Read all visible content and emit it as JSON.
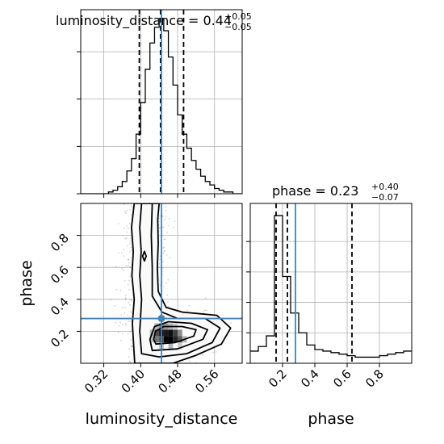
{
  "chart_data": {
    "type": "corner",
    "parameters": [
      "luminosity_distance",
      "phase"
    ],
    "truth": {
      "luminosity_distance": 0.445,
      "phase": 0.28
    },
    "titles": {
      "luminosity_distance": {
        "prefix": "luminosity_distance = 0.44",
        "sup": "+0.05",
        "sub": "−0.05"
      },
      "phase": {
        "prefix": "phase = 0.23",
        "sup": "+0.40",
        "sub": "−0.07"
      }
    },
    "xlabels": [
      "luminosity_distance",
      "phase"
    ],
    "ylabel": "phase",
    "hist_luminosity_distance": {
      "xlim": [
        0.27,
        0.62
      ],
      "quantiles": [
        0.397,
        0.443,
        0.493
      ],
      "edges": [
        0.27,
        0.28,
        0.29,
        0.3,
        0.31,
        0.32,
        0.33,
        0.34,
        0.35,
        0.36,
        0.37,
        0.38,
        0.39,
        0.4,
        0.41,
        0.42,
        0.43,
        0.44,
        0.45,
        0.46,
        0.47,
        0.48,
        0.49,
        0.5,
        0.51,
        0.52,
        0.53,
        0.54,
        0.55,
        0.56,
        0.57,
        0.58,
        0.59,
        0.6,
        0.61,
        0.62
      ],
      "counts": [
        0.0,
        0.0,
        0.0,
        0.0,
        0.0,
        0.0,
        0.01,
        0.02,
        0.04,
        0.07,
        0.13,
        0.2,
        0.34,
        0.52,
        0.71,
        0.86,
        0.95,
        1.0,
        0.93,
        0.78,
        0.62,
        0.45,
        0.34,
        0.26,
        0.19,
        0.14,
        0.1,
        0.07,
        0.05,
        0.03,
        0.02,
        0.01,
        0.01,
        0.0,
        0.0
      ],
      "xticks": [
        0.32,
        0.4,
        0.48,
        0.56
      ],
      "yticks": [
        0.0,
        0.27,
        0.54,
        0.81
      ],
      "ymax": 1.05
    },
    "hist_phase": {
      "xlim": [
        0.0,
        1.0
      ],
      "quantiles": [
        0.16,
        0.23,
        0.63
      ],
      "edges": [
        0.0,
        0.05,
        0.1,
        0.15,
        0.2,
        0.25,
        0.3,
        0.35,
        0.4,
        0.45,
        0.5,
        0.55,
        0.6,
        0.65,
        0.7,
        0.75,
        0.8,
        0.85,
        0.9,
        0.95,
        1.0
      ],
      "counts": [
        0.08,
        0.11,
        0.18,
        0.97,
        0.57,
        0.33,
        0.2,
        0.12,
        0.09,
        0.08,
        0.07,
        0.06,
        0.05,
        0.04,
        0.04,
        0.04,
        0.05,
        0.06,
        0.07,
        0.08
      ],
      "xticks": [
        0.2,
        0.4,
        0.6,
        0.8
      ],
      "yticks": [
        0.0,
        0.2,
        0.4,
        0.6,
        0.8
      ],
      "ymax": 1.05
    },
    "scatter_2d": {
      "xlim": [
        0.27,
        0.62
      ],
      "ylim": [
        0.0,
        1.0
      ],
      "xticks": [
        0.32,
        0.4,
        0.48,
        0.56
      ],
      "yticks": [
        0.2,
        0.4,
        0.6,
        0.8
      ],
      "xticklabels": [
        "0.32",
        "0.40",
        "0.48",
        "0.56"
      ],
      "yticklabels": [
        "0.2",
        "0.4",
        "0.6",
        "0.8"
      ],
      "contours": [
        [
          [
            0.386,
            1.0
          ],
          [
            0.38,
            0.85
          ],
          [
            0.384,
            0.7
          ],
          [
            0.381,
            0.55
          ],
          [
            0.386,
            0.4
          ],
          [
            0.382,
            0.25
          ],
          [
            0.385,
            0.1
          ],
          [
            0.387,
            0.0
          ],
          [
            0.47,
            0.0
          ],
          [
            0.52,
            0.05
          ],
          [
            0.575,
            0.12
          ],
          [
            0.595,
            0.22
          ],
          [
            0.565,
            0.3
          ],
          [
            0.49,
            0.32
          ],
          [
            0.455,
            0.35
          ],
          [
            0.438,
            0.45
          ],
          [
            0.436,
            0.6
          ],
          [
            0.438,
            0.75
          ],
          [
            0.437,
            0.9
          ],
          [
            0.44,
            1.0
          ]
        ],
        [
          [
            0.402,
            1.0
          ],
          [
            0.398,
            0.85
          ],
          [
            0.401,
            0.7
          ],
          [
            0.398,
            0.55
          ],
          [
            0.402,
            0.4
          ],
          [
            0.398,
            0.2
          ],
          [
            0.402,
            0.06
          ],
          [
            0.44,
            0.04
          ],
          [
            0.5,
            0.06
          ],
          [
            0.555,
            0.13
          ],
          [
            0.572,
            0.22
          ],
          [
            0.54,
            0.28
          ],
          [
            0.48,
            0.28
          ],
          [
            0.446,
            0.32
          ],
          [
            0.425,
            0.42
          ],
          [
            0.425,
            0.6
          ],
          [
            0.423,
            0.8
          ],
          [
            0.425,
            1.0
          ]
        ],
        [
          [
            0.425,
            0.08
          ],
          [
            0.48,
            0.09
          ],
          [
            0.535,
            0.15
          ],
          [
            0.545,
            0.21
          ],
          [
            0.51,
            0.25
          ],
          [
            0.46,
            0.26
          ],
          [
            0.43,
            0.23
          ],
          [
            0.42,
            0.15
          ]
        ],
        [
          [
            0.433,
            0.12
          ],
          [
            0.475,
            0.13
          ],
          [
            0.515,
            0.17
          ],
          [
            0.52,
            0.21
          ],
          [
            0.49,
            0.23
          ],
          [
            0.45,
            0.23
          ],
          [
            0.432,
            0.2
          ],
          [
            0.428,
            0.15
          ]
        ],
        [
          [
            0.408,
            0.64
          ],
          [
            0.412,
            0.67
          ],
          [
            0.408,
            0.7
          ],
          [
            0.404,
            0.67
          ]
        ]
      ],
      "density": [
        {
          "x": 0.435,
          "y": 0.19,
          "v": 0.7
        },
        {
          "x": 0.445,
          "y": 0.19,
          "v": 0.95
        },
        {
          "x": 0.455,
          "y": 0.19,
          "v": 0.9
        },
        {
          "x": 0.465,
          "y": 0.19,
          "v": 0.95
        },
        {
          "x": 0.475,
          "y": 0.19,
          "v": 0.75
        },
        {
          "x": 0.485,
          "y": 0.19,
          "v": 0.45
        },
        {
          "x": 0.435,
          "y": 0.15,
          "v": 0.55
        },
        {
          "x": 0.445,
          "y": 0.15,
          "v": 0.7
        },
        {
          "x": 0.455,
          "y": 0.15,
          "v": 1.0
        },
        {
          "x": 0.465,
          "y": 0.15,
          "v": 1.0
        },
        {
          "x": 0.475,
          "y": 0.15,
          "v": 0.85
        },
        {
          "x": 0.485,
          "y": 0.15,
          "v": 0.65
        },
        {
          "x": 0.495,
          "y": 0.15,
          "v": 0.3
        },
        {
          "x": 0.435,
          "y": 0.23,
          "v": 0.3
        },
        {
          "x": 0.445,
          "y": 0.23,
          "v": 0.5
        },
        {
          "x": 0.455,
          "y": 0.23,
          "v": 0.4
        },
        {
          "x": 0.465,
          "y": 0.23,
          "v": 0.3
        },
        {
          "x": 0.475,
          "y": 0.23,
          "v": 0.2
        },
        {
          "x": 0.425,
          "y": 0.19,
          "v": 0.3
        },
        {
          "x": 0.425,
          "y": 0.15,
          "v": 0.25
        },
        {
          "x": 0.445,
          "y": 0.11,
          "v": 0.25
        },
        {
          "x": 0.465,
          "y": 0.11,
          "v": 0.3
        },
        {
          "x": 0.485,
          "y": 0.11,
          "v": 0.2
        }
      ]
    },
    "colors": {
      "truth": "#4682b4",
      "line": "#000000",
      "grid": "#b0b0b0",
      "points": "#000000"
    }
  }
}
